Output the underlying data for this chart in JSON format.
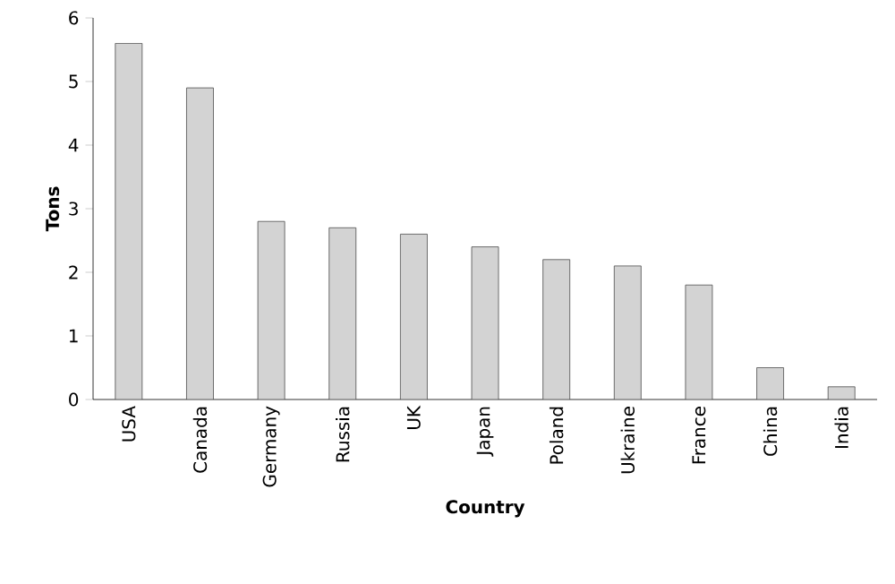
{
  "chart_data": {
    "type": "bar",
    "xlabel": "Country",
    "ylabel": "Tons",
    "categories": [
      "USA",
      "Canada",
      "Germany",
      "Russia",
      "UK",
      "Japan",
      "Poland",
      "Ukraine",
      "France",
      "China",
      "India"
    ],
    "values": [
      5.6,
      4.9,
      2.8,
      2.7,
      2.6,
      2.4,
      2.2,
      2.1,
      1.8,
      0.5,
      0.2
    ],
    "color": "#d3d3d3",
    "ylim": [
      0,
      6
    ],
    "yticks": [
      0,
      1,
      2,
      3,
      4,
      5,
      6
    ]
  }
}
